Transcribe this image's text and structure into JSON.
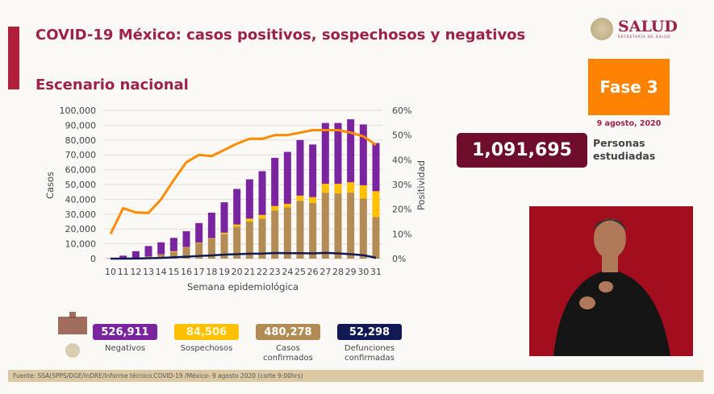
{
  "header": {
    "title": "COVID-19 México: casos positivos, sospechosos y negativos",
    "subtitle": "Escenario nacional",
    "brand": "SALUD",
    "brand_sub": "SECRETARÍA DE SALUD"
  },
  "phase": {
    "label": "Fase 3",
    "date": "9 agosto, 2020",
    "color": "#ff8200"
  },
  "studied": {
    "value": "1,091,695",
    "label_line1": "Personas",
    "label_line2": "estudiadas"
  },
  "stats": [
    {
      "value": "526,911",
      "label1": "Negativos",
      "label2": "",
      "color": "#7a24a0"
    },
    {
      "value": "84,506",
      "label1": "Sospechosos",
      "label2": "",
      "color": "#ffc000"
    },
    {
      "value": "480,278",
      "label1": "Casos",
      "label2": "confirmados",
      "color": "#b38b55"
    },
    {
      "value": "52,298",
      "label1": "Defunciones",
      "label2": "confirmadas",
      "color": "#111a55"
    }
  ],
  "footer": "Fuente: SSA(SPPS/DGE/InDRE/Informe técnico.COVID-19 /México- 9 agosto 2020 (corte 9:00hrs)",
  "chart_data": {
    "type": "bar",
    "stacked": true,
    "xlabel": "Semana epidemiológica",
    "ylabel": "Casos",
    "y2label": "Positividad",
    "ylim": [
      0,
      100000
    ],
    "y2lim": [
      0,
      60
    ],
    "yticks": [
      "0",
      "10,000",
      "20,000",
      "30,000",
      "40,000",
      "50,000",
      "60,000",
      "70,000",
      "80,000",
      "90,000",
      "100,000"
    ],
    "y2ticks": [
      "0%",
      "10%",
      "20%",
      "30%",
      "40%",
      "50%",
      "60%"
    ],
    "grid": true,
    "categories": [
      "10",
      "11",
      "12",
      "13",
      "14",
      "15",
      "16",
      "17",
      "18",
      "19",
      "20",
      "21",
      "22",
      "23",
      "24",
      "25",
      "26",
      "27",
      "28",
      "29",
      "30",
      "31"
    ],
    "series": [
      {
        "key": "confirmados",
        "kind": "bar",
        "color": "#b38b55",
        "values": [
          100,
          200,
          500,
          1500,
          2700,
          4500,
          7500,
          10500,
          13500,
          16500,
          21500,
          25000,
          27000,
          32500,
          34500,
          39000,
          37500,
          44500,
          44000,
          44500,
          40500,
          28000
        ]
      },
      {
        "key": "sospechosos",
        "kind": "bar",
        "color": "#ffc000",
        "values": [
          0,
          0,
          0,
          0,
          200,
          500,
          300,
          300,
          300,
          1000,
          1500,
          2000,
          2500,
          3000,
          2500,
          3500,
          4000,
          6000,
          6500,
          7000,
          9000,
          17500
        ]
      },
      {
        "key": "negativos",
        "kind": "bar",
        "color": "#7a24a0",
        "values": [
          200,
          1800,
          4500,
          7000,
          8100,
          9000,
          10700,
          13200,
          17200,
          20500,
          24000,
          26500,
          29500,
          32500,
          35000,
          37500,
          35500,
          41000,
          41000,
          42500,
          41000,
          32500
        ]
      },
      {
        "key": "defunciones",
        "kind": "line",
        "axis": "left",
        "color": "#111a55",
        "values": [
          0,
          0,
          100,
          300,
          500,
          900,
          1300,
          1800,
          2200,
          2700,
          3000,
          3300,
          3400,
          3800,
          3700,
          3700,
          3500,
          3900,
          3500,
          3000,
          2300,
          600
        ]
      },
      {
        "key": "positividad",
        "kind": "line",
        "axis": "right",
        "color": "#ff8c00",
        "values": [
          10,
          20.4,
          18.7,
          18.5,
          24,
          31.8,
          39,
          42,
          41.5,
          44,
          46.5,
          48.5,
          48.5,
          50,
          50,
          51,
          52,
          52,
          52,
          51,
          49.5,
          46
        ]
      }
    ]
  }
}
